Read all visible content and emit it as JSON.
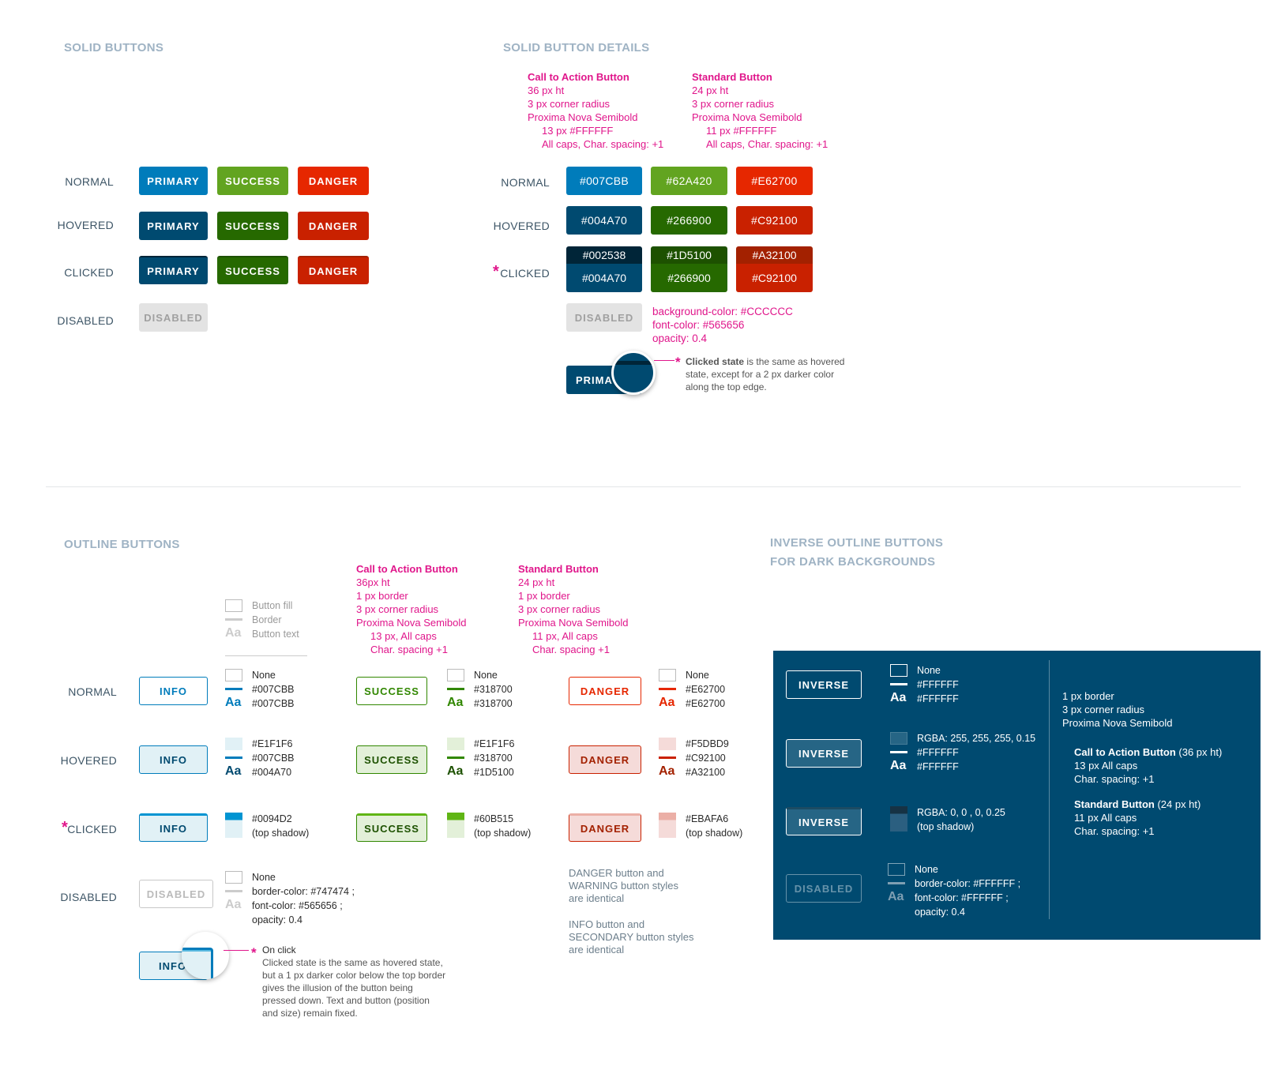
{
  "solid_buttons": {
    "title": "SOLID BUTTONS",
    "states": [
      "NORMAL",
      "HOVERED",
      "CLICKED",
      "DISABLED"
    ],
    "labels": {
      "primary": "PRIMARY",
      "success": "SUCCESS",
      "danger": "DANGER",
      "disabled": "DISABLED"
    },
    "colors": {
      "primary": [
        "#007CBB",
        "#004A70",
        "#004A70"
      ],
      "success": [
        "#62A420",
        "#266900",
        "#266900"
      ],
      "danger": [
        "#E62700",
        "#C92100",
        "#C92100"
      ],
      "clicked_top": [
        "#002538",
        "#1D5100",
        "#A32100"
      ],
      "disabled_bg": "#CCCCCC"
    }
  },
  "solid_details": {
    "title": "SOLID BUTTON DETAILS",
    "cta": {
      "heading": "Call to Action Button",
      "lines": [
        "36 px ht",
        "3 px corner radius",
        "Proxima Nova Semibold"
      ],
      "indented": [
        "13 px  #FFFFFF",
        "All caps, Char. spacing: +1"
      ]
    },
    "standard": {
      "heading": "Standard Button",
      "lines": [
        "24 px ht",
        "3 px corner radius",
        "Proxima Nova Semibold"
      ],
      "indented": [
        "11 px  #FFFFFF",
        "All caps, Char. spacing: +1"
      ]
    },
    "states": [
      "NORMAL",
      "HOVERED",
      "CLICKED"
    ],
    "normal": [
      "#007CBB",
      "#62A420",
      "#E62700"
    ],
    "hovered": [
      "#004A70",
      "#266900",
      "#C92100"
    ],
    "clicked_top": [
      "#002538",
      "#1D5100",
      "#A32100"
    ],
    "clicked_bottom": [
      "#004A70",
      "#266900",
      "#C92100"
    ],
    "disabled_label": "DISABLED",
    "disabled_specs": [
      "background-color: #CCCCCC",
      "font-color: #565656",
      "opacity: 0.4"
    ],
    "zoom_button_label": "PRIMA",
    "note_bold": "Clicked state",
    "note_rest_1": " is the same as hovered",
    "note_rest_2": "state, except for a 2 px darker color",
    "note_rest_3": "along the top edge."
  },
  "outline_buttons": {
    "title": "OUTLINE BUTTONS",
    "key": {
      "fill": "Button fill",
      "border": "Border",
      "text": "Button text",
      "aa": "Aa"
    },
    "cta": {
      "heading": "Call to Action Button",
      "lines": [
        "36px ht",
        "1 px border",
        "3 px corner radius",
        "Proxima Nova Semibold"
      ],
      "indented": [
        "13 px, All caps",
        "Char. spacing +1"
      ]
    },
    "standard": {
      "heading": "Standard Button",
      "lines": [
        "24 px ht",
        "1 px border",
        "3 px corner radius",
        "Proxima Nova Semibold"
      ],
      "indented": [
        "11 px, All caps",
        "Char. spacing +1"
      ]
    },
    "states": [
      "NORMAL",
      "HOVERED",
      "CLICKED",
      "DISABLED"
    ],
    "labels": {
      "info": "INFO",
      "success": "SUCCESS",
      "danger": "DANGER",
      "disabled": "DISABLED"
    },
    "info": {
      "normal": [
        "None",
        "#007CBB",
        "#007CBB"
      ],
      "hovered": [
        "#E1F1F6",
        "#007CBB",
        "#004A70"
      ],
      "clicked": [
        "#0094D2",
        "(top shadow)"
      ]
    },
    "success": {
      "normal": [
        "None",
        "#318700",
        "#318700"
      ],
      "hovered": [
        "#E1F1F6",
        "#318700",
        "#1D5100"
      ],
      "clicked": [
        "#60B515",
        "(top shadow)"
      ]
    },
    "danger": {
      "normal": [
        "None",
        "#E62700",
        "#E62700"
      ],
      "hovered": [
        "#F5DBD9",
        "#C92100",
        "#A32100"
      ],
      "clicked": [
        "#EBAFA6",
        "(top shadow)"
      ]
    },
    "disabled": [
      "None",
      "border-color: #747474 ;",
      "font-color: #565656 ;",
      "opacity: 0.4"
    ],
    "notes": {
      "danger_warning": [
        "DANGER button and",
        "WARNING button styles",
        "are identical"
      ],
      "info_secondary": [
        "INFO button and",
        "SECONDARY button styles",
        "are identical"
      ]
    },
    "zoom_button_label": "INFO",
    "onclick_title": "On click",
    "onclick_lines": [
      "Clicked state is the same as hovered state,",
      "but a 1 px darker color below the top border",
      "gives the illusion of the button being",
      "pressed down. Text and button (position",
      "and size) remain fixed."
    ]
  },
  "inverse": {
    "title_1": "INVERSE OUTLINE BUTTONS",
    "title_2": "FOR DARK BACKGROUNDS",
    "label": "INVERSE",
    "disabled_label": "DISABLED",
    "normal": [
      "None",
      "#FFFFFF",
      "#FFFFFF"
    ],
    "hovered": [
      "RGBA: 255, 255, 255, 0.15",
      "#FFFFFF",
      "#FFFFFF"
    ],
    "clicked": [
      "RGBA: 0, 0 , 0, 0.25",
      "(top shadow)"
    ],
    "disabled": [
      "None",
      "border-color: #FFFFFF ;",
      "font-color: #FFFFFF ;",
      "opacity: 0.4"
    ],
    "specs": [
      "1 px border",
      "3 px corner radius",
      "Proxima Nova Semibold"
    ],
    "cta_heading": "Call to Action Button",
    "cta_suffix": " (36 px ht)",
    "cta_lines": [
      "13 px  All caps",
      "Char. spacing: +1"
    ],
    "std_heading": "Standard Button",
    "std_suffix": " (24 px ht)",
    "std_lines": [
      "11 px  All caps",
      "Char. spacing: +1"
    ]
  },
  "asterisk": "*"
}
